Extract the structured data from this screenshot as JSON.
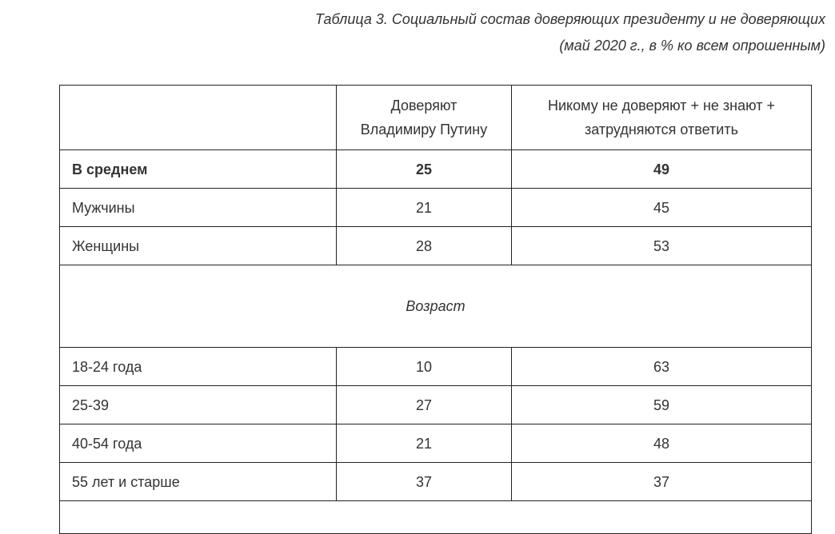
{
  "caption": {
    "line1": "Таблица 3. Социальный состав доверяющих президенту и не доверяющих",
    "line2": "(май 2020 г., в % ко всем опрошенным)"
  },
  "table": {
    "headers": [
      "",
      "Доверяют Владимиру Путину",
      "Никому не доверяют +  не знают + затрудняются ответить"
    ],
    "header_lines": {
      "col1": [
        "Доверяют",
        "Владимиру Путину"
      ],
      "col2": [
        "Никому не доверяют +  не знают +",
        "затрудняются ответить"
      ]
    },
    "rows_top": [
      {
        "label": "В среднем",
        "trust": "25",
        "other": "49",
        "bold": true
      },
      {
        "label": "Мужчины",
        "trust": "21",
        "other": "45"
      },
      {
        "label": "Женщины",
        "trust": "28",
        "other": "53"
      }
    ],
    "section": "Возраст",
    "rows_age": [
      {
        "label": "18-24 года",
        "trust": "10",
        "other": "63"
      },
      {
        "label": "25-39",
        "trust": "27",
        "other": "59"
      },
      {
        "label": "40-54 года",
        "trust": "21",
        "other": "48"
      },
      {
        "label": "55 лет и старше",
        "trust": "37",
        "other": "37"
      }
    ]
  }
}
